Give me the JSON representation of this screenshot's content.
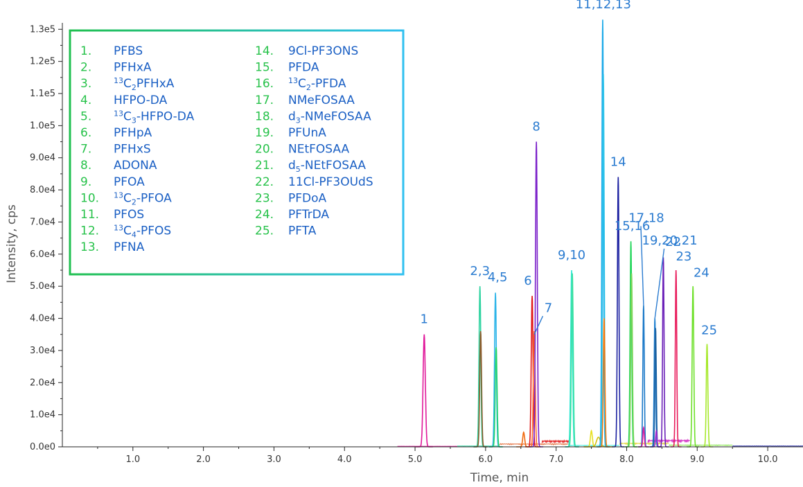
{
  "chart_data": {
    "type": "line",
    "xlabel": "Time, min",
    "ylabel": "Intensity, cps",
    "xlim": [
      0,
      10.5
    ],
    "ylim": [
      0,
      132000
    ],
    "x_ticks": [
      1.0,
      2.0,
      3.0,
      4.0,
      5.0,
      6.0,
      7.0,
      8.0,
      9.0,
      10.0
    ],
    "x_tick_labels": [
      "1.0",
      "2.0",
      "3.0",
      "4.0",
      "5.0",
      "6.0",
      "7.0",
      "8.0",
      "9.0",
      "10.0"
    ],
    "y_ticks": [
      0,
      10000,
      20000,
      30000,
      40000,
      50000,
      60000,
      70000,
      80000,
      90000,
      100000,
      110000,
      120000,
      130000
    ],
    "y_tick_labels": [
      "0.0e0",
      "1.0e4",
      "2.0e4",
      "3.0e4",
      "4.0e4",
      "5.0e4",
      "6.0e4",
      "7.0e4",
      "8.0e4",
      "9.0e4",
      "1.0e5",
      "1.1e5",
      "1.2e5",
      "1.3e5"
    ],
    "legend": [
      {
        "num": "1.",
        "pre": "",
        "sup": "",
        "base": "PFBS",
        "sub": "",
        "post": ""
      },
      {
        "num": "2.",
        "pre": "",
        "sup": "",
        "base": "PFHxA",
        "sub": "",
        "post": ""
      },
      {
        "num": "3.",
        "pre": "",
        "sup": "13",
        "base": "C",
        "sub": "2",
        "post": "PFHxA"
      },
      {
        "num": "4.",
        "pre": "",
        "sup": "",
        "base": "HFPO-DA",
        "sub": "",
        "post": ""
      },
      {
        "num": "5.",
        "pre": "",
        "sup": "13",
        "base": "C",
        "sub": "3",
        "post": "-HFPO-DA"
      },
      {
        "num": "6.",
        "pre": "",
        "sup": "",
        "base": "PFHpA",
        "sub": "",
        "post": ""
      },
      {
        "num": "7.",
        "pre": "",
        "sup": "",
        "base": "PFHxS",
        "sub": "",
        "post": ""
      },
      {
        "num": "8.",
        "pre": "",
        "sup": "",
        "base": "ADONA",
        "sub": "",
        "post": ""
      },
      {
        "num": "9.",
        "pre": "",
        "sup": "",
        "base": "PFOA",
        "sub": "",
        "post": ""
      },
      {
        "num": "10.",
        "pre": "",
        "sup": "13",
        "base": "C",
        "sub": "2",
        "post": "-PFOA"
      },
      {
        "num": "11.",
        "pre": "",
        "sup": "",
        "base": "PFOS",
        "sub": "",
        "post": ""
      },
      {
        "num": "12.",
        "pre": "",
        "sup": "13",
        "base": "C",
        "sub": "4",
        "post": "-PFOS"
      },
      {
        "num": "13.",
        "pre": "",
        "sup": "",
        "base": "PFNA",
        "sub": "",
        "post": ""
      },
      {
        "num": "14.",
        "pre": "",
        "sup": "",
        "base": "9Cl-PF3ONS",
        "sub": "",
        "post": ""
      },
      {
        "num": "15.",
        "pre": "",
        "sup": "",
        "base": "PFDA",
        "sub": "",
        "post": ""
      },
      {
        "num": "16.",
        "pre": "",
        "sup": "13",
        "base": "C",
        "sub": "2",
        "post": "-PFDA"
      },
      {
        "num": "17.",
        "pre": "",
        "sup": "",
        "base": "NMeFOSAA",
        "sub": "",
        "post": ""
      },
      {
        "num": "18.",
        "pre": "",
        "sup": "",
        "base": "d",
        "sub": "3",
        "post": "-NMeFOSAA"
      },
      {
        "num": "19.",
        "pre": "",
        "sup": "",
        "base": "PFUnA",
        "sub": "",
        "post": ""
      },
      {
        "num": "20.",
        "pre": "",
        "sup": "",
        "base": "NEtFOSAA",
        "sub": "",
        "post": ""
      },
      {
        "num": "21.",
        "pre": "",
        "sup": "",
        "base": "d",
        "sub": "5",
        "post": "-NEtFOSAA"
      },
      {
        "num": "22.",
        "pre": "",
        "sup": "",
        "base": "11Cl-PF3OUdS",
        "sub": "",
        "post": ""
      },
      {
        "num": "23.",
        "pre": "",
        "sup": "",
        "base": "PFDoA",
        "sub": "",
        "post": ""
      },
      {
        "num": "24.",
        "pre": "",
        "sup": "",
        "base": "PFTrDA",
        "sub": "",
        "post": ""
      },
      {
        "num": "25.",
        "pre": "",
        "sup": "",
        "base": "PFTA",
        "sub": "",
        "post": ""
      }
    ],
    "peaks": [
      {
        "rt": 5.13,
        "height": 35000,
        "width": 0.035,
        "color": "#e0189a"
      },
      {
        "rt": 5.92,
        "height": 50000,
        "width": 0.028,
        "color": "#2ed3a0"
      },
      {
        "rt": 5.93,
        "height": 36000,
        "width": 0.028,
        "color": "#8a5a2a"
      },
      {
        "rt": 6.14,
        "height": 48000,
        "width": 0.028,
        "color": "#29b3e8"
      },
      {
        "rt": 6.15,
        "height": 31000,
        "width": 0.028,
        "color": "#26d46a"
      },
      {
        "rt": 6.54,
        "height": 4500,
        "width": 0.03,
        "color": "#f06a10"
      },
      {
        "rt": 6.66,
        "height": 47000,
        "width": 0.028,
        "color": "#e01616"
      },
      {
        "rt": 6.69,
        "height": 36000,
        "width": 0.028,
        "color": "#ff6a2a"
      },
      {
        "rt": 6.72,
        "height": 95000,
        "width": 0.028,
        "color": "#7a1fc9"
      },
      {
        "rt": 7.22,
        "height": 55000,
        "width": 0.028,
        "color": "#2ee8d6"
      },
      {
        "rt": 7.23,
        "height": 54000,
        "width": 0.028,
        "color": "#3adfa0"
      },
      {
        "rt": 7.5,
        "height": 5000,
        "width": 0.03,
        "color": "#e8e020"
      },
      {
        "rt": 7.6,
        "height": 3000,
        "width": 0.06,
        "color": "#d4c010"
      },
      {
        "rt": 7.66,
        "height": 133000,
        "width": 0.025,
        "color": "#1aa9e8"
      },
      {
        "rt": 7.67,
        "height": 116000,
        "width": 0.025,
        "color": "#2fc4ea"
      },
      {
        "rt": 7.68,
        "height": 40000,
        "width": 0.025,
        "color": "#f07a10"
      },
      {
        "rt": 7.88,
        "height": 84000,
        "width": 0.025,
        "color": "#1a1fa0"
      },
      {
        "rt": 8.06,
        "height": 64000,
        "width": 0.025,
        "color": "#22d65a"
      },
      {
        "rt": 8.07,
        "height": 54000,
        "width": 0.025,
        "color": "#7ed65a"
      },
      {
        "rt": 8.24,
        "height": 44000,
        "width": 0.022,
        "color": "#1a78c8"
      },
      {
        "rt": 8.24,
        "height": 6000,
        "width": 0.022,
        "color": "#e020a0"
      },
      {
        "rt": 8.4,
        "height": 40000,
        "width": 0.022,
        "color": "#2080d0"
      },
      {
        "rt": 8.41,
        "height": 37000,
        "width": 0.022,
        "color": "#1a60a0"
      },
      {
        "rt": 8.42,
        "height": 5000,
        "width": 0.022,
        "color": "#a02ad0"
      },
      {
        "rt": 8.52,
        "height": 59000,
        "width": 0.022,
        "color": "#6a1fb8"
      },
      {
        "rt": 8.7,
        "height": 55000,
        "width": 0.022,
        "color": "#e81a5a"
      },
      {
        "rt": 8.94,
        "height": 50000,
        "width": 0.025,
        "color": "#6ee02a"
      },
      {
        "rt": 9.14,
        "height": 32000,
        "width": 0.025,
        "color": "#a6e82a"
      }
    ],
    "baselines": [
      {
        "x": [
          4.75,
          5.6
        ],
        "level": 200,
        "color": "#e0189a"
      },
      {
        "x": [
          5.6,
          6.2
        ],
        "level": 300,
        "color": "#2ed3a0"
      },
      {
        "x": [
          6.2,
          7.2
        ],
        "level": 1000,
        "color": "#e05a20"
      },
      {
        "x": [
          6.8,
          7.2
        ],
        "level": 2000,
        "color": "#e01616"
      },
      {
        "x": [
          7.2,
          7.9
        ],
        "level": 500,
        "color": "#2ee8d6"
      },
      {
        "x": [
          7.9,
          8.6
        ],
        "level": 1200,
        "color": "#e0d020"
      },
      {
        "x": [
          8.3,
          8.9
        ],
        "level": 2200,
        "color": "#d020c0"
      },
      {
        "x": [
          8.6,
          9.5
        ],
        "level": 600,
        "color": "#6ee02a"
      },
      {
        "x": [
          9.5,
          10.5
        ],
        "level": 300,
        "color": "#1a1fa0"
      }
    ],
    "annotations": [
      {
        "text": "1",
        "x": 5.13,
        "y": 38500
      },
      {
        "text": "2,3",
        "x": 5.92,
        "y": 53500
      },
      {
        "text": "4,5",
        "x": 6.17,
        "y": 51500
      },
      {
        "text": "6",
        "x": 6.6,
        "y": 50500
      },
      {
        "text": "7",
        "x": 6.89,
        "y": 42000,
        "leader_to": [
          6.69,
          35000
        ]
      },
      {
        "text": "8",
        "x": 6.72,
        "y": 98500
      },
      {
        "text": "9,10",
        "x": 7.22,
        "y": 58500
      },
      {
        "text": "11,12,13",
        "x": 7.67,
        "y": 136500
      },
      {
        "text": "14",
        "x": 7.88,
        "y": 87500
      },
      {
        "text": "15,16",
        "x": 8.08,
        "y": 67500
      },
      {
        "text": "17,18",
        "x": 8.28,
        "y": 70000,
        "leader_to": [
          8.24,
          44000
        ]
      },
      {
        "text": "19,20,21",
        "x": 8.61,
        "y": 63000,
        "leader_to": [
          8.4,
          40000
        ]
      },
      {
        "text": "22",
        "x": 8.66,
        "y": 62500
      },
      {
        "text": "23",
        "x": 8.81,
        "y": 58000
      },
      {
        "text": "24",
        "x": 9.06,
        "y": 53000
      },
      {
        "text": "25",
        "x": 9.17,
        "y": 35000
      }
    ]
  }
}
